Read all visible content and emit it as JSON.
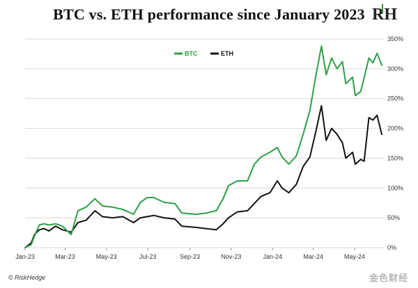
{
  "header": {
    "title": "BTC vs. ETH performance since January 2023",
    "logo_text": "RH"
  },
  "footer": {
    "copyright": "© RiskHedge",
    "watermark": "金色财经"
  },
  "colors": {
    "btc": "#2e9e46",
    "eth": "#111111",
    "grid": "#d8d8d8",
    "axis_text": "#333333"
  },
  "chart_data": {
    "type": "line",
    "title": "BTC vs. ETH performance since January 2023",
    "xlabel": "",
    "ylabel": "",
    "x_tick_labels": [
      "Jan-23",
      "Mar-23",
      "May-23",
      "Jul-23",
      "Sep-23",
      "Nov-23",
      "Jan-24",
      "Mar-24",
      "May-24"
    ],
    "x_range": [
      "2023-01-01",
      "2024-06-10"
    ],
    "ylim": [
      0,
      350
    ],
    "y_ticks": [
      0,
      50,
      100,
      150,
      200,
      250,
      300,
      350
    ],
    "y_tick_labels": [
      "0%",
      "50%",
      "100%",
      "150%",
      "200%",
      "250%",
      "300%",
      "350%"
    ],
    "grid": "horizontal",
    "legend_position": "top-left",
    "series": [
      {
        "name": "BTC",
        "color": "#2e9e46",
        "points": [
          [
            "2023-01-01",
            0
          ],
          [
            "2023-01-10",
            5
          ],
          [
            "2023-01-15",
            20
          ],
          [
            "2023-01-22",
            38
          ],
          [
            "2023-01-29",
            40
          ],
          [
            "2023-02-05",
            38
          ],
          [
            "2023-02-15",
            40
          ],
          [
            "2023-02-25",
            36
          ],
          [
            "2023-03-10",
            22
          ],
          [
            "2023-03-20",
            62
          ],
          [
            "2023-04-01",
            68
          ],
          [
            "2023-04-14",
            82
          ],
          [
            "2023-04-25",
            70
          ],
          [
            "2023-05-10",
            68
          ],
          [
            "2023-05-25",
            64
          ],
          [
            "2023-06-10",
            56
          ],
          [
            "2023-06-20",
            76
          ],
          [
            "2023-06-30",
            84
          ],
          [
            "2023-07-10",
            84
          ],
          [
            "2023-07-25",
            76
          ],
          [
            "2023-08-10",
            74
          ],
          [
            "2023-08-20",
            58
          ],
          [
            "2023-09-10",
            56
          ],
          [
            "2023-09-25",
            58
          ],
          [
            "2023-10-10",
            62
          ],
          [
            "2023-10-20",
            82
          ],
          [
            "2023-10-28",
            104
          ],
          [
            "2023-11-10",
            112
          ],
          [
            "2023-11-25",
            112
          ],
          [
            "2023-12-05",
            140
          ],
          [
            "2023-12-15",
            152
          ],
          [
            "2023-12-28",
            160
          ],
          [
            "2024-01-08",
            168
          ],
          [
            "2024-01-15",
            152
          ],
          [
            "2024-01-25",
            140
          ],
          [
            "2024-02-05",
            154
          ],
          [
            "2024-02-15",
            190
          ],
          [
            "2024-02-25",
            230
          ],
          [
            "2024-03-05",
            290
          ],
          [
            "2024-03-13",
            338
          ],
          [
            "2024-03-20",
            290
          ],
          [
            "2024-03-28",
            318
          ],
          [
            "2024-04-05",
            300
          ],
          [
            "2024-04-13",
            312
          ],
          [
            "2024-04-18",
            275
          ],
          [
            "2024-04-28",
            286
          ],
          [
            "2024-05-02",
            255
          ],
          [
            "2024-05-10",
            262
          ],
          [
            "2024-05-15",
            285
          ],
          [
            "2024-05-22",
            318
          ],
          [
            "2024-05-28",
            310
          ],
          [
            "2024-06-03",
            326
          ],
          [
            "2024-06-10",
            306
          ]
        ]
      },
      {
        "name": "ETH",
        "color": "#111111",
        "points": [
          [
            "2023-01-01",
            0
          ],
          [
            "2023-01-10",
            8
          ],
          [
            "2023-01-15",
            22
          ],
          [
            "2023-01-22",
            30
          ],
          [
            "2023-01-29",
            32
          ],
          [
            "2023-02-05",
            28
          ],
          [
            "2023-02-15",
            36
          ],
          [
            "2023-02-25",
            30
          ],
          [
            "2023-03-10",
            26
          ],
          [
            "2023-03-20",
            42
          ],
          [
            "2023-04-01",
            46
          ],
          [
            "2023-04-14",
            62
          ],
          [
            "2023-04-25",
            52
          ],
          [
            "2023-05-10",
            50
          ],
          [
            "2023-05-25",
            52
          ],
          [
            "2023-06-10",
            42
          ],
          [
            "2023-06-20",
            50
          ],
          [
            "2023-06-30",
            52
          ],
          [
            "2023-07-10",
            54
          ],
          [
            "2023-07-25",
            50
          ],
          [
            "2023-08-10",
            48
          ],
          [
            "2023-08-20",
            36
          ],
          [
            "2023-09-10",
            34
          ],
          [
            "2023-09-25",
            32
          ],
          [
            "2023-10-10",
            30
          ],
          [
            "2023-10-20",
            40
          ],
          [
            "2023-10-28",
            50
          ],
          [
            "2023-11-10",
            60
          ],
          [
            "2023-11-25",
            62
          ],
          [
            "2023-12-05",
            74
          ],
          [
            "2023-12-15",
            86
          ],
          [
            "2023-12-28",
            92
          ],
          [
            "2024-01-08",
            112
          ],
          [
            "2024-01-15",
            100
          ],
          [
            "2024-01-25",
            92
          ],
          [
            "2024-02-05",
            106
          ],
          [
            "2024-02-15",
            136
          ],
          [
            "2024-02-25",
            152
          ],
          [
            "2024-03-05",
            196
          ],
          [
            "2024-03-13",
            238
          ],
          [
            "2024-03-20",
            180
          ],
          [
            "2024-03-28",
            200
          ],
          [
            "2024-04-05",
            190
          ],
          [
            "2024-04-13",
            176
          ],
          [
            "2024-04-18",
            150
          ],
          [
            "2024-04-28",
            160
          ],
          [
            "2024-05-02",
            140
          ],
          [
            "2024-05-10",
            148
          ],
          [
            "2024-05-15",
            145
          ],
          [
            "2024-05-22",
            218
          ],
          [
            "2024-05-28",
            214
          ],
          [
            "2024-06-03",
            222
          ],
          [
            "2024-06-10",
            190
          ]
        ]
      }
    ]
  }
}
